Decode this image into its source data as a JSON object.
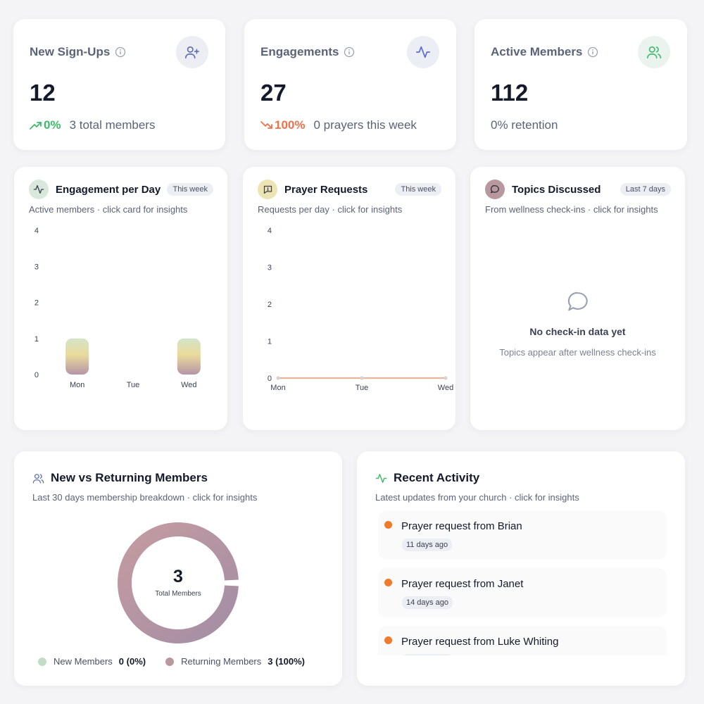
{
  "stats": [
    {
      "title": "New Sign-Ups",
      "value": "12",
      "trend": "0%",
      "trend_color": "#3dbb6a",
      "trend_dir": "up",
      "note": "3 total members",
      "icon": "user-plus-icon",
      "icon_bg": "#eceef4",
      "icon_color": "#5b6fb0"
    },
    {
      "title": "Engagements",
      "value": "27",
      "trend": "100%",
      "trend_color": "#f0704a",
      "trend_dir": "down",
      "note": "0 prayers this week",
      "icon": "activity-icon",
      "icon_bg": "#eceef6",
      "icon_color": "#5a6fd8"
    },
    {
      "title": "Active Members",
      "value": "112",
      "trend": "",
      "note": "0% retention",
      "icon": "users-icon",
      "icon_bg": "#eaf3ee",
      "icon_color": "#3dbb6a"
    }
  ],
  "engagement": {
    "title": "Engagement per Day",
    "pill": "This week",
    "subtitle": "Active members · click card for insights"
  },
  "prayer": {
    "title": "Prayer Requests",
    "pill": "This week",
    "subtitle": "Requests per day · click for insights"
  },
  "topics": {
    "title": "Topics Discussed",
    "pill": "Last 7 days",
    "subtitle": "From wellness check-ins · click for insights",
    "empty_title": "No check-in data yet",
    "empty_sub": "Topics appear after wellness check-ins"
  },
  "members": {
    "title": "New vs Returning Members",
    "subtitle": "Last 30 days membership breakdown · click for insights",
    "total_value": "3",
    "total_label": "Total Members",
    "legend": [
      {
        "label": "New Members",
        "value": "0 (0%)",
        "color": "#c3dcc8"
      },
      {
        "label": "Returning Members",
        "value": "3 (100%)",
        "color": "#b8979f"
      }
    ]
  },
  "activity": {
    "title": "Recent Activity",
    "subtitle": "Latest updates from your church · click for insights",
    "items": [
      {
        "title": "Prayer request from Brian",
        "time": "11 days ago"
      },
      {
        "title": "Prayer request from Janet",
        "time": "14 days ago"
      },
      {
        "title": "Prayer request from Luke Whiting",
        "time": ""
      }
    ]
  },
  "chart_data": [
    {
      "type": "bar",
      "categories": [
        "Mon",
        "Tue",
        "Wed"
      ],
      "values": [
        1,
        0,
        1
      ],
      "ylim": [
        0,
        4
      ],
      "yticks": [
        "0",
        "1",
        "2",
        "3",
        "4"
      ],
      "grid": false
    },
    {
      "type": "line",
      "categories": [
        "Mon",
        "Tue",
        "Wed"
      ],
      "values": [
        0,
        0,
        0
      ],
      "ylim": [
        0,
        4
      ],
      "yticks": [
        "0",
        "1",
        "2",
        "3",
        "4"
      ],
      "color": "#e8b49a",
      "grid": false
    },
    {
      "type": "pie",
      "categories": [
        "New Members",
        "Returning Members"
      ],
      "values": [
        0,
        3
      ]
    }
  ]
}
